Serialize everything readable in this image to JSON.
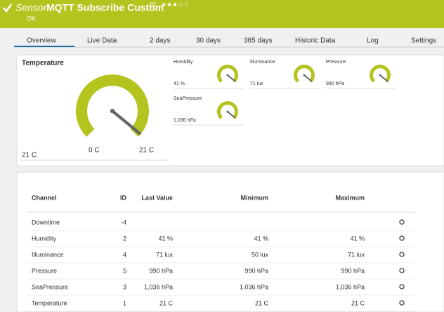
{
  "header": {
    "label": "Sensor",
    "title": "MQTT Subscribe Custom",
    "status": "OK"
  },
  "tabs": [
    "Overview",
    "Live Data",
    "2 days",
    "30 days",
    "365 days",
    "Historic Data",
    "Log",
    "Settings"
  ],
  "gauges": {
    "main": {
      "name": "Temperature",
      "value": "21 C",
      "min": "0 C",
      "max": "21 C"
    },
    "small": [
      {
        "name": "Humidity",
        "value": "41 %"
      },
      {
        "name": "Illuminance",
        "value": "71 lux"
      },
      {
        "name": "Pressure",
        "value": "990 hPa"
      },
      {
        "name": "SeaPressure",
        "value": "1,036 hPa"
      }
    ]
  },
  "table": {
    "columns": [
      "Channel",
      "ID",
      "Last Value",
      "Minimum",
      "Maximum"
    ],
    "rows": [
      [
        "Downtime",
        "-4"
      ],
      [
        "Humidity",
        "2",
        "41 %",
        "41 %",
        "41 %"
      ],
      [
        "Illuminance",
        "4",
        "71 lux",
        "50 lux",
        "71 lux"
      ],
      [
        "Pressure",
        "5",
        "990 hPa",
        "990 hPa",
        "990 hPa"
      ],
      [
        "SeaPressure",
        "3",
        "1,036 hPa",
        "1,036 hPa",
        "1,036 hPa"
      ],
      [
        "Temperature",
        "1",
        "21 C",
        "21 C",
        "21 C"
      ]
    ]
  }
}
